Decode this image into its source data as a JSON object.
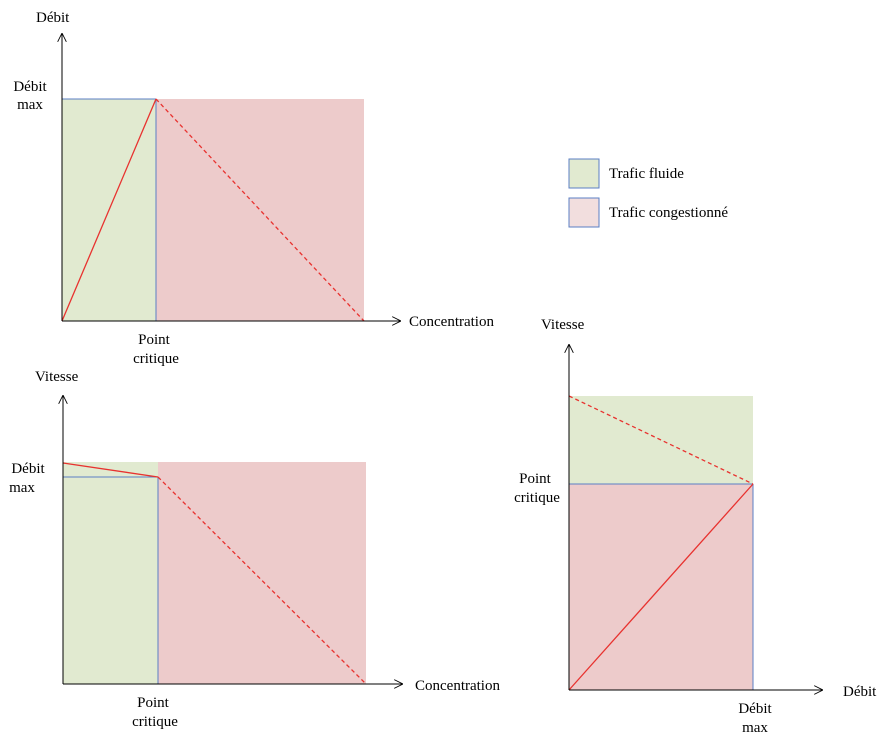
{
  "colors": {
    "fluid": "#e1ead0",
    "congested": "#edcbcb",
    "blue_line": "#5b7fc4",
    "red_line": "#e8322f",
    "axis": "#000000"
  },
  "legend": {
    "fluid_label": "Trafic fluide",
    "congested_label": "Trafic congestionné"
  },
  "diagram1": {
    "y_axis_label": "Débit",
    "x_axis_label": "Concentration",
    "max_label_line1": "Débit",
    "max_label_line2": "max",
    "critical_label_line1": "Point",
    "critical_label_line2": "critique"
  },
  "diagram2": {
    "y_axis_label": "Vitesse",
    "x_axis_label": "Concentration",
    "max_label_line1": "Débit",
    "max_label_line2": "max",
    "critical_label_line1": "Point",
    "critical_label_line2": "critique"
  },
  "diagram3": {
    "y_axis_label": "Vitesse",
    "x_axis_label": "Débit",
    "critical_label_line1": "Point",
    "critical_label_line2": "critique",
    "max_label_line1": "Débit",
    "max_label_line2": "max"
  }
}
